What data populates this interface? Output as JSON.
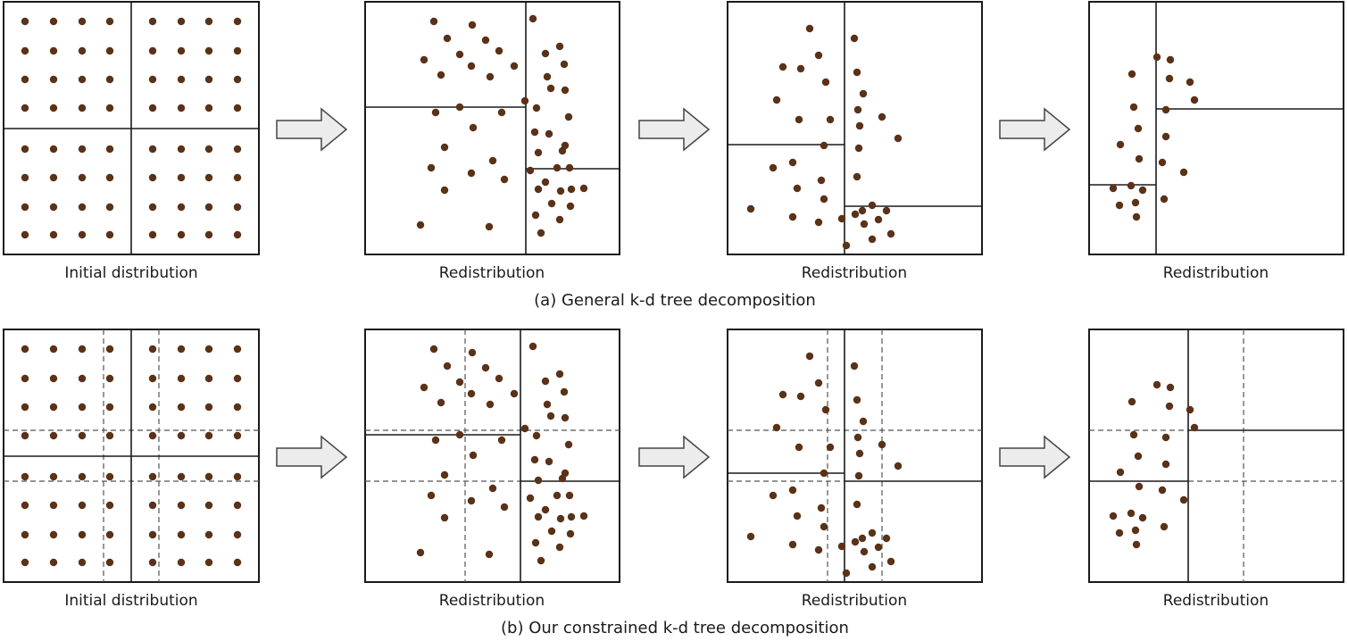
{
  "style": {
    "dot_color": "#5a3218",
    "line_color": "#1a1a1a",
    "dash_color": "#555555",
    "arrow_fill": "#ececec",
    "arrow_stroke": "#444444"
  },
  "rows": [
    {
      "caption": "(a) General k-d tree decomposition",
      "panels": [
        {
          "label": "Initial distribution",
          "kind": "initial"
        },
        {
          "label": "Redistribution",
          "kind": "redistribution"
        },
        {
          "label": "Redistribution",
          "kind": "redistribution"
        },
        {
          "label": "Redistribution",
          "kind": "redistribution"
        }
      ],
      "arrows": [
        {
          "icon": "right-arrow-icon"
        },
        {
          "icon": "right-arrow-icon"
        },
        {
          "icon": "right-arrow-icon"
        }
      ]
    },
    {
      "caption": "(b) Our constrained k-d tree decomposition",
      "panels": [
        {
          "label": "Initial distribution",
          "kind": "initial"
        },
        {
          "label": "Redistribution",
          "kind": "redistribution"
        },
        {
          "label": "Redistribution",
          "kind": "redistribution"
        },
        {
          "label": "Redistribution",
          "kind": "redistribution"
        }
      ],
      "arrows": [
        {
          "icon": "right-arrow-icon"
        },
        {
          "icon": "right-arrow-icon"
        },
        {
          "icon": "right-arrow-icon"
        }
      ]
    }
  ]
}
